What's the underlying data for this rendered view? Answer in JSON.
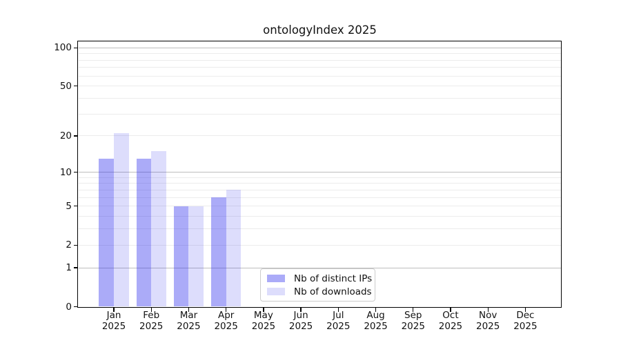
{
  "title": "ontologyIndex 2025",
  "colors": {
    "bar_distinct_ips": "rgba(45,45,238,0.40)",
    "bar_downloads": "rgba(45,45,238,0.16)",
    "grid_minor": "#ececec",
    "grid_major": "#bdbdbd",
    "axis": "#000000"
  },
  "legend": {
    "items": [
      {
        "label": "Nb of distinct IPs",
        "swatch_color": "rgba(45,45,238,0.40)"
      },
      {
        "label": "Nb of downloads",
        "swatch_color": "rgba(45,45,238,0.16)"
      }
    ]
  },
  "chart_data": {
    "type": "bar",
    "title": "ontologyIndex 2025",
    "categories": [
      "Jan",
      "Feb",
      "Mar",
      "Apr",
      "May",
      "Jun",
      "Jul",
      "Aug",
      "Sep",
      "Oct",
      "Nov",
      "Dec"
    ],
    "category_year": "2025",
    "series": [
      {
        "name": "Nb of distinct IPs",
        "values": [
          13,
          13,
          5,
          6,
          0,
          0,
          0,
          0,
          0,
          0,
          0,
          0
        ]
      },
      {
        "name": "Nb of downloads",
        "values": [
          21,
          15,
          5,
          7,
          0,
          0,
          0,
          0,
          0,
          0,
          0,
          0
        ]
      }
    ],
    "xlabel": "",
    "ylabel": "",
    "yscale": "log1p",
    "ylim": [
      0,
      110
    ],
    "yticks": [
      0,
      1,
      2,
      5,
      10,
      20,
      50,
      100
    ],
    "y_major_gridlines": [
      1,
      10,
      100
    ],
    "y_minor_gridlines": [
      2,
      3,
      4,
      5,
      6,
      7,
      8,
      9,
      20,
      30,
      40,
      50,
      60,
      70,
      80,
      90
    ],
    "grid": "on",
    "legend_position": "lower center"
  }
}
